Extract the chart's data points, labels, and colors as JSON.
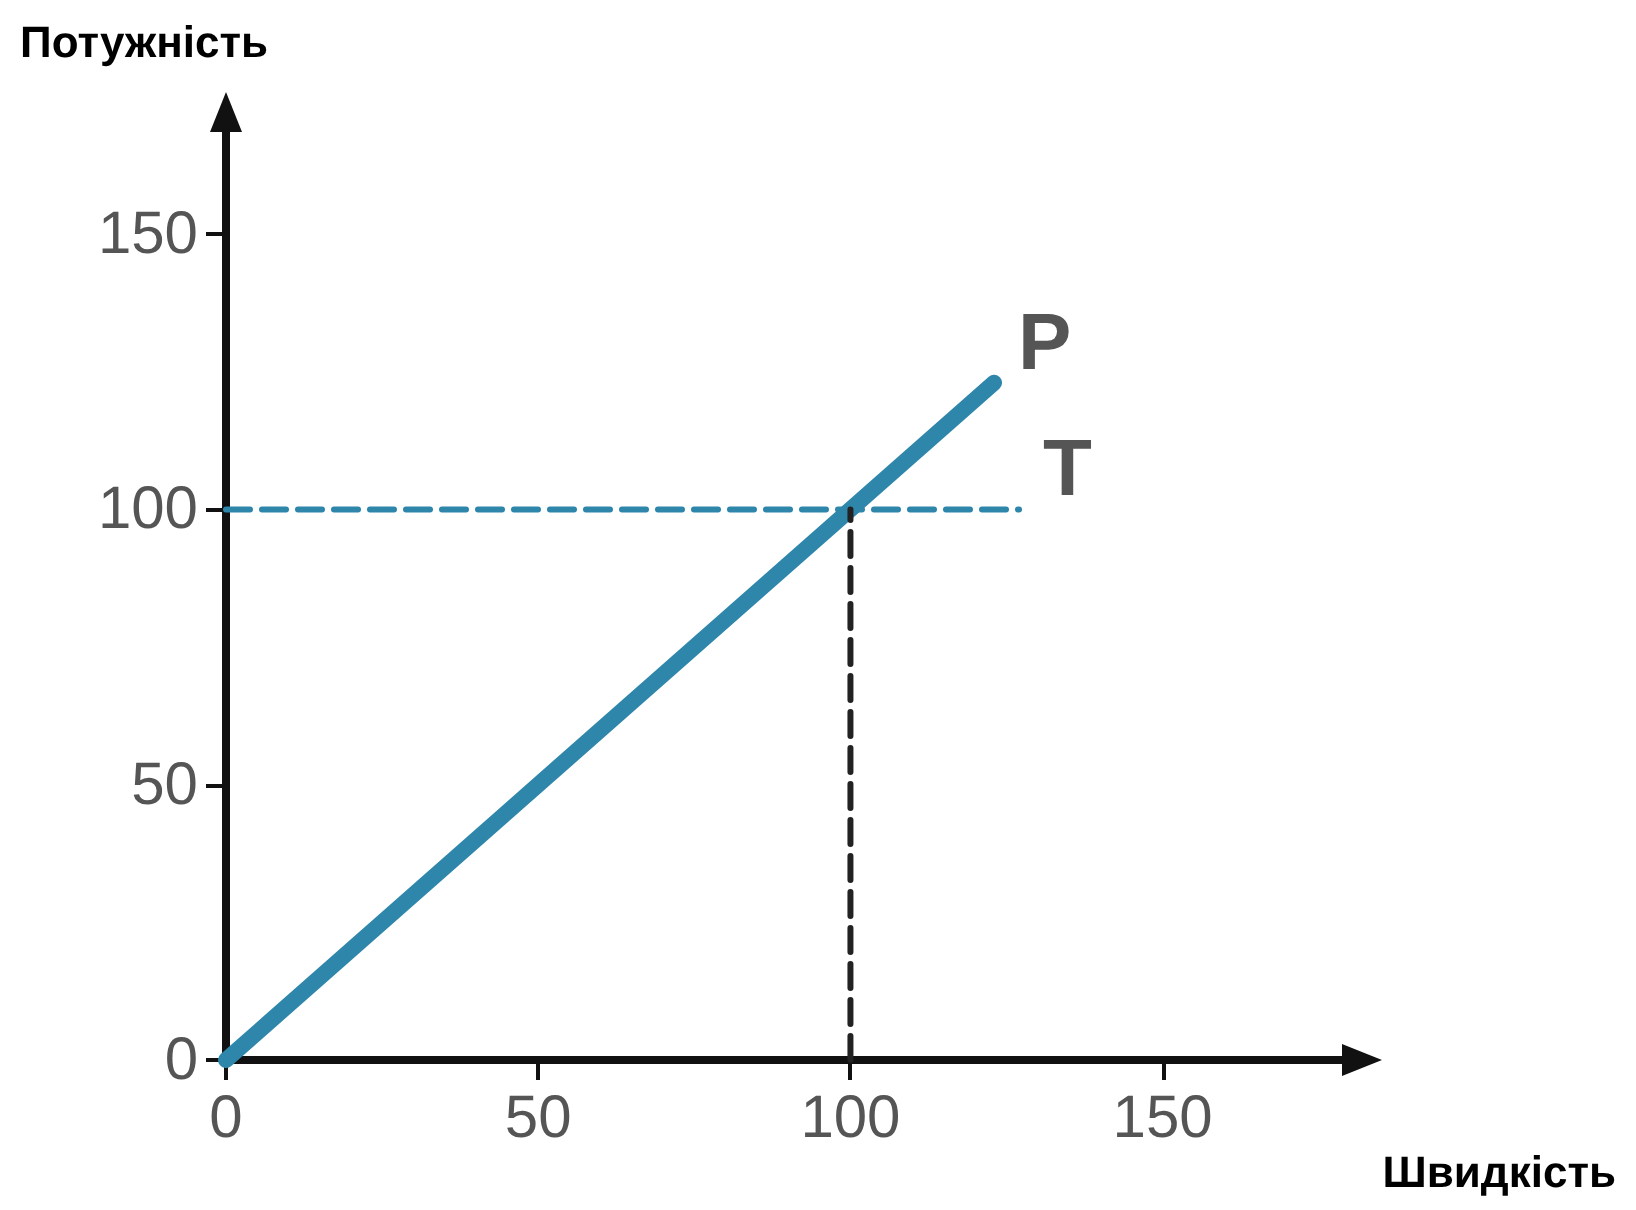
{
  "chart_data": {
    "type": "line",
    "xlabel": "Швидкість",
    "ylabel": "Потужність",
    "xlim": [
      0,
      180
    ],
    "ylim": [
      0,
      170
    ],
    "xticks": [
      0,
      50,
      100,
      150
    ],
    "yticks": [
      0,
      50,
      100,
      150
    ],
    "grid": false,
    "legend": false,
    "marker": "none",
    "series": [
      {
        "name": "P",
        "color": "#2e86ab",
        "x": [
          0,
          123
        ],
        "values": [
          0,
          123
        ],
        "line_style": "solid"
      },
      {
        "name": "T",
        "color": "#2e86ab",
        "x": [
          0,
          127
        ],
        "values": [
          100,
          100
        ],
        "line_style": "dashed"
      },
      {
        "color": "#222222",
        "x": [
          100,
          100
        ],
        "values": [
          0,
          100
        ],
        "line_style": "dashed"
      }
    ]
  }
}
